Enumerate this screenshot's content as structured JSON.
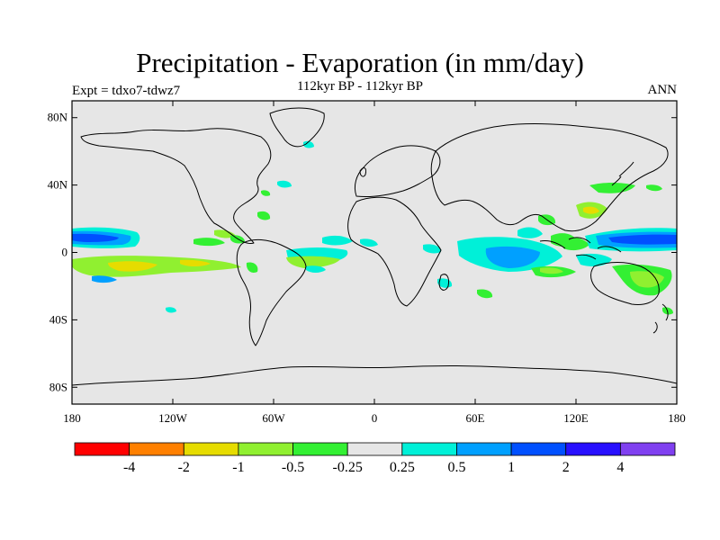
{
  "map": {
    "title": "Precipitation - Evaporation (in mm/day)",
    "subtitle": "112kyr BP - 112kyr BP",
    "left_label": "Expt = tdxo7-tdwz7",
    "right_label": "ANN",
    "lat_ticks": [
      "80N",
      "40N",
      "0",
      "40S",
      "80S"
    ],
    "lon_ticks": [
      "180",
      "120W",
      "60W",
      "0",
      "60E",
      "120E",
      "180"
    ],
    "colors": {
      "background": "#e6e6e6",
      "coastline": "#000000"
    }
  },
  "colorbar": {
    "colors": [
      "#ff0000",
      "#ff8000",
      "#e6dc00",
      "#90f030",
      "#33f033",
      "#e6e6e6",
      "#00f0d8",
      "#00a0ff",
      "#0050ff",
      "#2810ff",
      "#8040f0"
    ],
    "labels": [
      "-4",
      "-2",
      "-1",
      "-0.5",
      "-0.25",
      "0.25",
      "0.5",
      "1",
      "2",
      "4"
    ]
  }
}
